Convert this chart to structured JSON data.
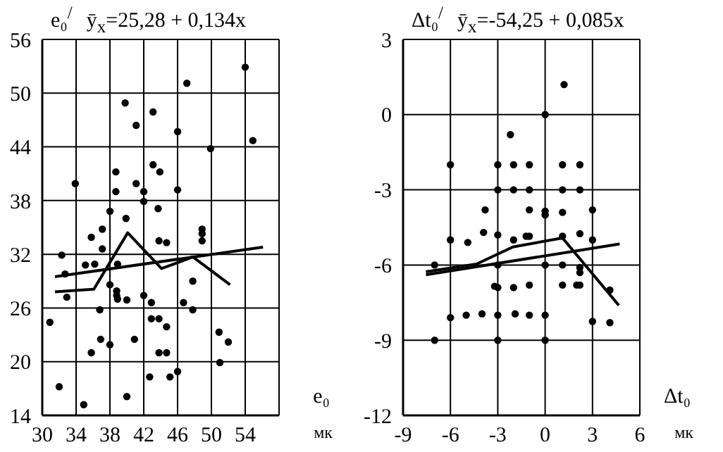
{
  "chart_data": [
    {
      "type": "scatter",
      "title": "ȳ$_{x}$=25,28 + 0,134x",
      "ylabel": "e₀$^{/}$",
      "xlabel": "e₀",
      "annotations": [
        "мк"
      ],
      "xlim": [
        30,
        58
      ],
      "xticks": [
        30,
        34,
        38,
        42,
        46,
        50,
        54,
        {
          "value": 58,
          "label": null
        }
      ],
      "ylim": [
        14,
        56
      ],
      "yticks": [
        14,
        20,
        26,
        32,
        38,
        44,
        50,
        56
      ],
      "grid": true,
      "series": [
        {
          "type": "scatter",
          "color": "#000000",
          "marker": "circle",
          "x": [
            54.0,
            47.1,
            39.8,
            43.1,
            41.1,
            46.0,
            49.9,
            54.9,
            43.1,
            38.7,
            43.9,
            33.9,
            41.1,
            38.7,
            42.0,
            46.0,
            42.0,
            38.0,
            43.7,
            39.9,
            35.8,
            37.1,
            37.1,
            32.3,
            32.7,
            35.1,
            36.2,
            38.9,
            32.9,
            38.0,
            38.8,
            38.8,
            38.9,
            40.0,
            36.8,
            42.0,
            42.9,
            43.8,
            44.7,
            48.9,
            48.9,
            48.9,
            47.8,
            46.7,
            47.8,
            42.9,
            43.8,
            44.7,
            36.9,
            40.9,
            38.0,
            35.8,
            43.8,
            44.7,
            50.9,
            52.0,
            51.0,
            42.7,
            45.1,
            46.0,
            30.9,
            32.0,
            34.9,
            40.0
          ],
          "values": [
            52.9,
            51.1,
            48.9,
            47.9,
            46.4,
            45.7,
            43.8,
            44.7,
            42.0,
            41.2,
            41.2,
            39.9,
            39.9,
            39.0,
            39.0,
            39.2,
            37.9,
            36.8,
            37.1,
            36.0,
            33.9,
            34.8,
            32.6,
            31.9,
            29.8,
            30.8,
            30.9,
            30.9,
            27.2,
            28.6,
            27.9,
            27.4,
            27.0,
            26.9,
            25.8,
            27.4,
            26.6,
            33.5,
            33.3,
            34.8,
            34.3,
            33.5,
            29.0,
            26.6,
            25.8,
            24.8,
            24.8,
            23.9,
            22.5,
            22.5,
            21.9,
            21.0,
            21.0,
            21.0,
            23.3,
            22.2,
            19.9,
            18.3,
            18.3,
            18.9,
            24.4,
            17.2,
            15.2,
            16.1
          ]
        },
        {
          "type": "line",
          "color": "#000000",
          "marker": "none",
          "x": [
            31.5,
            56.1
          ],
          "values": [
            29.5,
            32.8
          ]
        },
        {
          "type": "line",
          "color": "#000000",
          "marker": "none",
          "x": [
            31.5,
            36.1,
            40.1,
            44.1,
            47.8,
            52.2
          ],
          "values": [
            27.8,
            28.1,
            34.4,
            30.4,
            31.7,
            28.6
          ]
        }
      ]
    },
    {
      "type": "scatter",
      "title": "ȳ$_{x}$=-54,25 + 0,085x",
      "ylabel": "Δt₀$^{/}$",
      "xlabel": "Δt₀",
      "annotations": [
        "мк"
      ],
      "xlim": [
        -9,
        6
      ],
      "xticks": [
        -9,
        -6,
        -3,
        0,
        3,
        6
      ],
      "ylim": [
        -12,
        3
      ],
      "yticks": [
        -12,
        -9,
        -6,
        -3,
        0,
        3
      ],
      "grid": true,
      "series": [
        {
          "type": "scatter",
          "color": "#000000",
          "marker": "circle",
          "x": [
            1.2,
            0,
            -2.2,
            -6,
            -3,
            -2,
            -1,
            1.1,
            2.2,
            -3,
            -2,
            -1,
            1.1,
            2.2,
            -3.8,
            -1,
            0,
            0,
            1.1,
            3,
            -3.9,
            -6,
            -4.9,
            -3,
            -2,
            -1.2,
            -1,
            1.1,
            2.2,
            3,
            -7,
            -3,
            0,
            1.1,
            2.2,
            2.2,
            -3.2,
            -3,
            -2,
            -1,
            1.1,
            2,
            2.2,
            4.1,
            -6,
            -5,
            -4,
            -3,
            -1.9,
            -1,
            0,
            3,
            4.1,
            -7,
            -3,
            0
          ],
          "values": [
            1.2,
            0,
            -0.8,
            -2,
            -2,
            -2,
            -2,
            -2,
            -2,
            -3,
            -3,
            -3,
            -3,
            -3,
            -3.8,
            -3.8,
            -3.85,
            -4,
            -3.9,
            -3.8,
            -4.7,
            -5,
            -5.1,
            -4.8,
            -5,
            -4.85,
            -4.85,
            -4.85,
            -4.75,
            -5,
            -6,
            -6,
            -6,
            -6,
            -6.1,
            -6.3,
            -6.85,
            -6.9,
            -6.9,
            -6.8,
            -6.8,
            -6.8,
            -6.8,
            -7,
            -8.1,
            -8,
            -7.95,
            -8,
            -7.95,
            -8,
            -8,
            -8.25,
            -8.3,
            -9,
            -9,
            -9
          ]
        },
        {
          "type": "line",
          "color": "#000000",
          "marker": "none",
          "x": [
            -7.55,
            4.72
          ],
          "values": [
            -6.39,
            -5.16
          ]
        },
        {
          "type": "line",
          "color": "#000000",
          "marker": "none",
          "x": [
            -7.55,
            -4.34,
            -2.04,
            1.1,
            4.67
          ],
          "values": [
            -6.27,
            -5.96,
            -5.28,
            -4.92,
            -7.61
          ]
        }
      ]
    }
  ]
}
